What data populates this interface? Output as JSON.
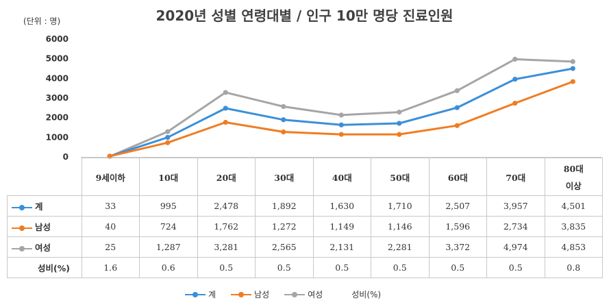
{
  "title": "2020년 성별 연령대별 / 인구 10만 명당 진료인원",
  "unit_label": "(단위 : 명)",
  "chart_data": {
    "type": "line",
    "categories": [
      "9세이하",
      "10대",
      "20대",
      "30대",
      "40대",
      "50대",
      "60대",
      "70대",
      "80대 이상"
    ],
    "category_lines": [
      [
        "9세이하"
      ],
      [
        "10대"
      ],
      [
        "20대"
      ],
      [
        "30대"
      ],
      [
        "40대"
      ],
      [
        "50대"
      ],
      [
        "60대"
      ],
      [
        "70대"
      ],
      [
        "80대",
        "이상"
      ]
    ],
    "ylim": [
      0,
      6000
    ],
    "yticks": [
      "0",
      "1000",
      "2000",
      "3000",
      "4000",
      "5000",
      "6000"
    ],
    "series": [
      {
        "name": "계",
        "color": "#3a8fd9",
        "values": [
          33,
          995,
          2478,
          1892,
          1630,
          1710,
          2507,
          3957,
          4501
        ],
        "labels": [
          "33",
          "995",
          "2,478",
          "1,892",
          "1,630",
          "1,710",
          "2,507",
          "3,957",
          "4,501"
        ]
      },
      {
        "name": "남성",
        "color": "#f07c22",
        "values": [
          40,
          724,
          1762,
          1272,
          1149,
          1146,
          1596,
          2734,
          3835
        ],
        "labels": [
          "40",
          "724",
          "1,762",
          "1,272",
          "1,149",
          "1,146",
          "1,596",
          "2,734",
          "3,835"
        ]
      },
      {
        "name": "여성",
        "color": "#a5a5a5",
        "values": [
          25,
          1287,
          3281,
          2565,
          2131,
          2281,
          3372,
          4974,
          4853
        ],
        "labels": [
          "25",
          "1,287",
          "3,281",
          "2,565",
          "2,131",
          "2,281",
          "3,372",
          "4,974",
          "4,853"
        ]
      }
    ],
    "extra_row": {
      "name": "성비(%)",
      "labels": [
        "1.6",
        "0.6",
        "0.5",
        "0.5",
        "0.5",
        "0.5",
        "0.5",
        "0.5",
        "0.8"
      ]
    },
    "grid": false,
    "legend_position": "bottom"
  },
  "legend": [
    {
      "label": "계",
      "color": "#3a8fd9",
      "marker": true
    },
    {
      "label": "남성",
      "color": "#f07c22",
      "marker": true
    },
    {
      "label": "여성",
      "color": "#a5a5a5",
      "marker": true
    },
    {
      "label": "성비(%)",
      "color": "",
      "marker": false
    }
  ]
}
